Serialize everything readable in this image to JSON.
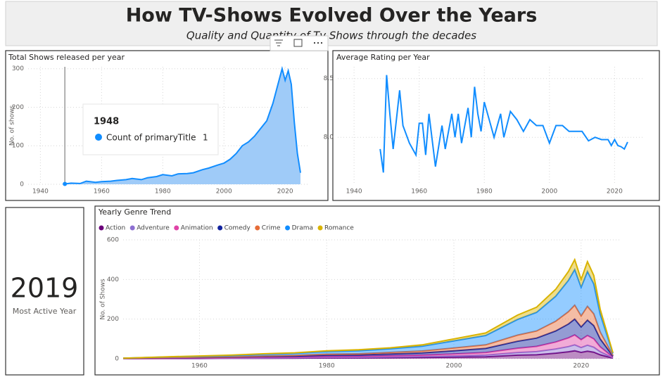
{
  "header": {
    "title": "How TV-Shows Evolved Over the Years",
    "subtitle": "Quality and Quantity of Tv Shows through the decades"
  },
  "card": {
    "value": "2019",
    "label": "Most Active Year"
  },
  "tooltip": {
    "title": "1948",
    "label": "Count of primaryTitle",
    "value": 1
  },
  "chart_data": [
    {
      "type": "area",
      "title": "Total Shows released per year",
      "ylabel": "No. of shows",
      "color": "#118dff",
      "fill": "#9fcbf8",
      "x": [
        1948,
        1950,
        1953,
        1955,
        1958,
        1960,
        1963,
        1965,
        1968,
        1970,
        1973,
        1975,
        1978,
        1980,
        1983,
        1985,
        1988,
        1990,
        1993,
        1995,
        1998,
        2000,
        2002,
        2004,
        2006,
        2008,
        2010,
        2012,
        2014,
        2016,
        2018,
        2019,
        2020,
        2021,
        2022,
        2023,
        2024,
        2025
      ],
      "values": [
        1,
        3,
        2,
        8,
        5,
        7,
        8,
        10,
        12,
        15,
        12,
        17,
        20,
        25,
        22,
        27,
        28,
        30,
        38,
        42,
        50,
        55,
        65,
        80,
        100,
        110,
        125,
        145,
        165,
        210,
        270,
        300,
        270,
        295,
        260,
        160,
        80,
        30
      ],
      "xlim": [
        1936,
        2028
      ],
      "xticks": [
        1940,
        1960,
        1980,
        2000,
        2020
      ],
      "ylim": [
        0,
        305
      ],
      "yticks": [
        0,
        100,
        200,
        300
      ],
      "grid": true
    },
    {
      "type": "line",
      "title": "Average Rating per Year",
      "color": "#118dff",
      "x": [
        1948,
        1949,
        1950,
        1951,
        1952,
        1954,
        1955,
        1957,
        1959,
        1960,
        1961,
        1962,
        1963,
        1965,
        1967,
        1968,
        1970,
        1971,
        1972,
        1973,
        1975,
        1976,
        1977,
        1978,
        1979,
        1980,
        1982,
        1983,
        1985,
        1986,
        1988,
        1990,
        1992,
        1994,
        1996,
        1998,
        2000,
        2002,
        2004,
        2006,
        2008,
        2010,
        2012,
        2014,
        2016,
        2018,
        2019,
        2020,
        2021,
        2022,
        2023,
        2024
      ],
      "values": [
        7.9,
        7.7,
        8.53,
        8.2,
        7.9,
        8.4,
        8.1,
        7.95,
        7.85,
        8.12,
        8.12,
        7.85,
        8.2,
        7.75,
        8.1,
        7.9,
        8.2,
        8.0,
        8.2,
        7.95,
        8.25,
        8.0,
        8.43,
        8.2,
        8.05,
        8.3,
        8.1,
        8.0,
        8.2,
        8.0,
        8.22,
        8.15,
        8.05,
        8.15,
        8.1,
        8.1,
        7.95,
        8.1,
        8.1,
        8.05,
        8.05,
        8.05,
        7.97,
        8.0,
        7.98,
        7.98,
        7.93,
        7.98,
        7.93,
        7.92,
        7.9,
        7.96
      ],
      "xlim": [
        1935,
        2029
      ],
      "xticks": [
        1940,
        1960,
        1980,
        2000,
        2020
      ],
      "ylim": [
        7.6,
        8.6
      ],
      "yticks": [
        {
          "value": 8,
          "label": "8.0"
        },
        8.5
      ],
      "grid": true
    },
    {
      "type": "stacked_area",
      "title": "Yearly Genre Trend",
      "ylabel": "No. of Shows",
      "x": [
        1948,
        1955,
        1960,
        1965,
        1970,
        1975,
        1980,
        1985,
        1990,
        1995,
        2000,
        2005,
        2010,
        2013,
        2016,
        2018,
        2019,
        2020,
        2021,
        2022,
        2023,
        2025
      ],
      "series": [
        {
          "name": "Action",
          "color": "#6b007b",
          "values": [
            0,
            1,
            1,
            2,
            2,
            3,
            4,
            4,
            5,
            6,
            8,
            10,
            18,
            20,
            28,
            35,
            40,
            32,
            38,
            33,
            20,
            3
          ]
        },
        {
          "name": "Adventure",
          "color": "#8d6fd1",
          "values": [
            0,
            1,
            1,
            1,
            2,
            2,
            3,
            3,
            4,
            5,
            6,
            8,
            13,
            16,
            21,
            26,
            30,
            24,
            30,
            25,
            15,
            2
          ]
        },
        {
          "name": "Animation",
          "color": "#e044a7",
          "values": [
            1,
            1,
            2,
            2,
            3,
            3,
            4,
            5,
            6,
            7,
            10,
            13,
            22,
            26,
            35,
            44,
            50,
            40,
            49,
            42,
            25,
            3
          ]
        },
        {
          "name": "Comedy",
          "color": "#12239e",
          "values": [
            1,
            2,
            2,
            3,
            4,
            5,
            7,
            7,
            9,
            11,
            16,
            21,
            35,
            42,
            56,
            70,
            80,
            64,
            78,
            67,
            40,
            5
          ]
        },
        {
          "name": "Crime",
          "color": "#e66c37",
          "values": [
            0,
            1,
            2,
            2,
            3,
            4,
            5,
            6,
            8,
            10,
            14,
            18,
            31,
            36,
            49,
            62,
            70,
            56,
            69,
            59,
            35,
            4
          ]
        },
        {
          "name": "Drama",
          "color": "#118dff",
          "values": [
            1,
            3,
            4,
            6,
            8,
            10,
            13,
            15,
            18,
            24,
            36,
            47,
            79,
            94,
            126,
            158,
            180,
            144,
            176,
            151,
            90,
            10
          ]
        },
        {
          "name": "Romance",
          "color": "#d9b300",
          "values": [
            0,
            1,
            2,
            2,
            3,
            3,
            4,
            5,
            5,
            7,
            10,
            13,
            22,
            26,
            35,
            45,
            50,
            40,
            50,
            43,
            25,
            3
          ]
        }
      ],
      "xlim": [
        1948,
        2026
      ],
      "xticks": [
        1960,
        1980,
        2000,
        2020
      ],
      "ylim": [
        0,
        600
      ],
      "yticks": [
        0,
        200,
        400,
        600
      ],
      "grid": true
    }
  ]
}
